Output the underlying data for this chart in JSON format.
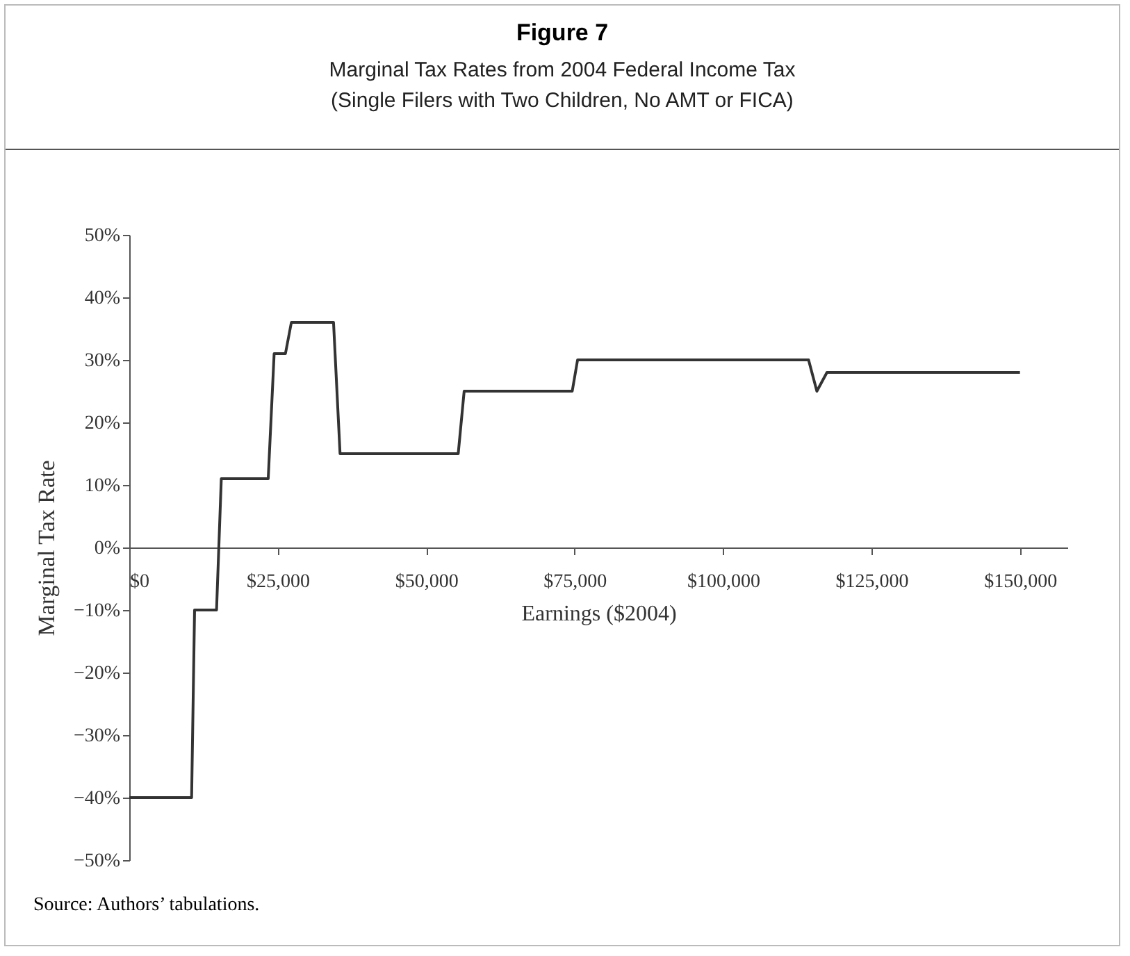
{
  "chart_data": {
    "type": "line",
    "title": "Figure 7",
    "subtitle": "Marginal Tax Rates from 2004 Federal Income Tax\n(Single Filers with Two Children, No AMT or FICA)",
    "xlabel": "Earnings ($2004)",
    "ylabel": "Marginal Tax Rate",
    "series": [
      {
        "color": "#333333",
        "x": [
          0,
          10500,
          11000,
          14700,
          15500,
          23400,
          24400,
          26300,
          27300,
          34400,
          35500,
          55400,
          56400,
          74600,
          75500,
          114400,
          115800,
          117500,
          150000
        ],
        "values": [
          -40,
          -40,
          -10,
          -10,
          11,
          11,
          31,
          31,
          36,
          36,
          15,
          15,
          25,
          25,
          30,
          30,
          25,
          28,
          28
        ]
      }
    ],
    "xlim": [
      0,
      158000
    ],
    "xticks": [
      {
        "value": 0,
        "label": "$0"
      },
      {
        "value": 25000,
        "label": "$25,000"
      },
      {
        "value": 50000,
        "label": "$50,000"
      },
      {
        "value": 75000,
        "label": "$75,000"
      },
      {
        "value": 100000,
        "label": "$100,000"
      },
      {
        "value": 125000,
        "label": "$125,000"
      },
      {
        "value": 150000,
        "label": "$150,000"
      }
    ],
    "ylim": [
      -50,
      50
    ],
    "yticks": [
      {
        "value": -50,
        "label": "−50%"
      },
      {
        "value": -40,
        "label": "−40%"
      },
      {
        "value": -30,
        "label": "−30%"
      },
      {
        "value": -20,
        "label": "−20%"
      },
      {
        "value": -10,
        "label": "−10%"
      },
      {
        "value": 0,
        "label": "0%"
      },
      {
        "value": 10,
        "label": "10%"
      },
      {
        "value": 20,
        "label": "20%"
      },
      {
        "value": 30,
        "label": "30%"
      },
      {
        "value": 40,
        "label": "40%"
      },
      {
        "value": 50,
        "label": "50%"
      }
    ],
    "grid": false,
    "line_style": "solid",
    "annotations": [
      "Source: Authors’ tabulations."
    ]
  }
}
